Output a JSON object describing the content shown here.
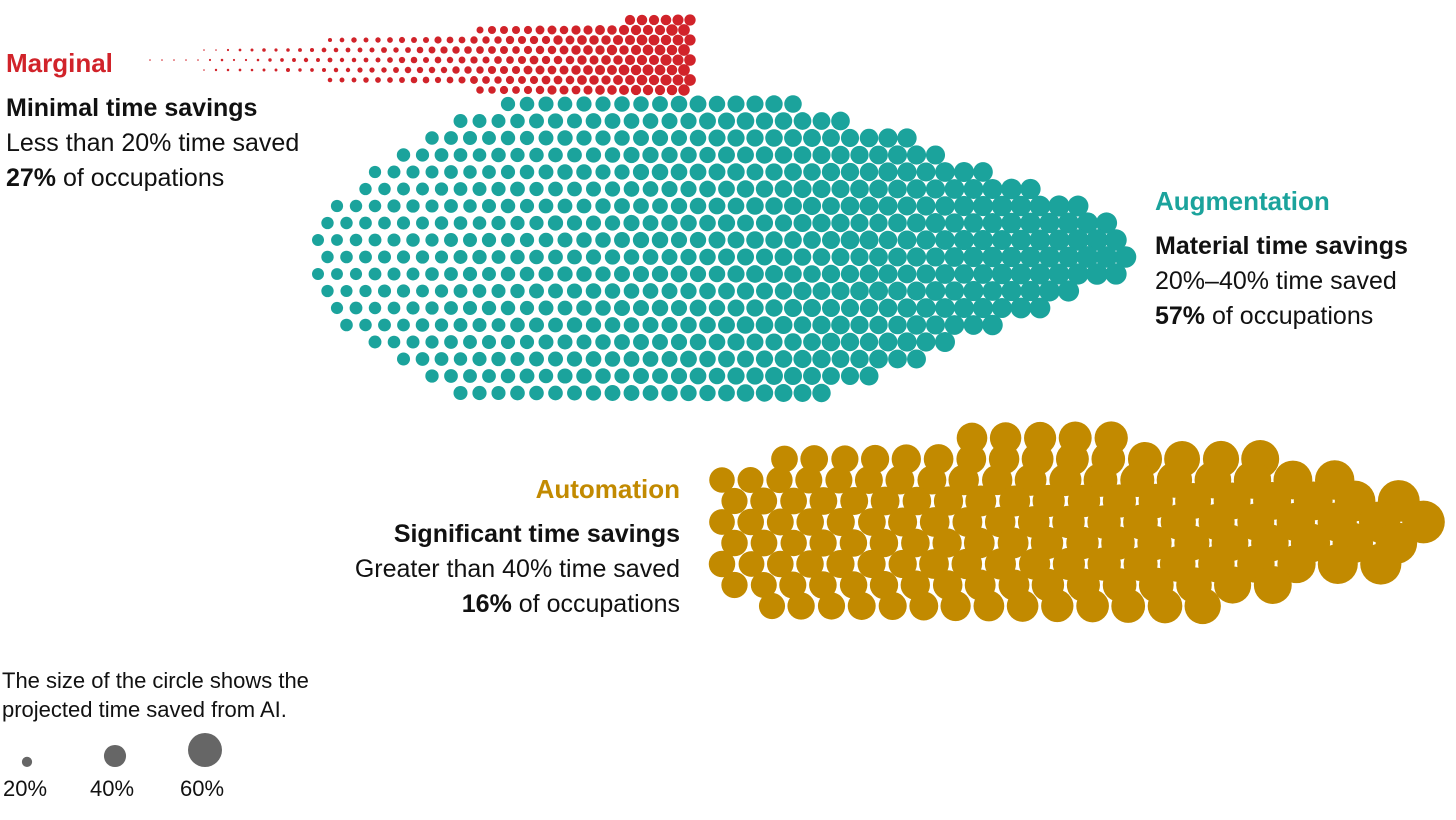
{
  "chart_data": {
    "type": "scatter",
    "encoding": "circle size = projected time saved from AI",
    "groups": [
      {
        "key": "marginal",
        "name": "Marginal",
        "subtitle": "Minimal time savings",
        "range_text": "Less than 20% time saved",
        "share_value": "27%",
        "share_suffix": "of occupations",
        "share_pct": 27,
        "time_saved_range": [
          0,
          20
        ],
        "color": "#D1232A"
      },
      {
        "key": "augmentation",
        "name": "Augmentation",
        "subtitle": "Material time savings",
        "range_text": "20%–40% time saved",
        "share_value": "57%",
        "share_suffix": "of occupations",
        "share_pct": 57,
        "time_saved_range": [
          20,
          40
        ],
        "color": "#1BA39C"
      },
      {
        "key": "automation",
        "name": "Automation",
        "subtitle": "Significant time savings",
        "range_text": "Greater than 40% time saved",
        "share_value": "16%",
        "share_suffix": "of occupations",
        "share_pct": 16,
        "time_saved_range": [
          40,
          65
        ],
        "color": "#C28A00"
      }
    ],
    "legend": {
      "line1": "The size of the circle shows the",
      "line2": "projected time saved from AI.",
      "items": [
        {
          "label": "20%",
          "value": 20
        },
        {
          "label": "40%",
          "value": 40
        },
        {
          "label": "60%",
          "value": 60
        }
      ],
      "color": "#666666"
    }
  }
}
